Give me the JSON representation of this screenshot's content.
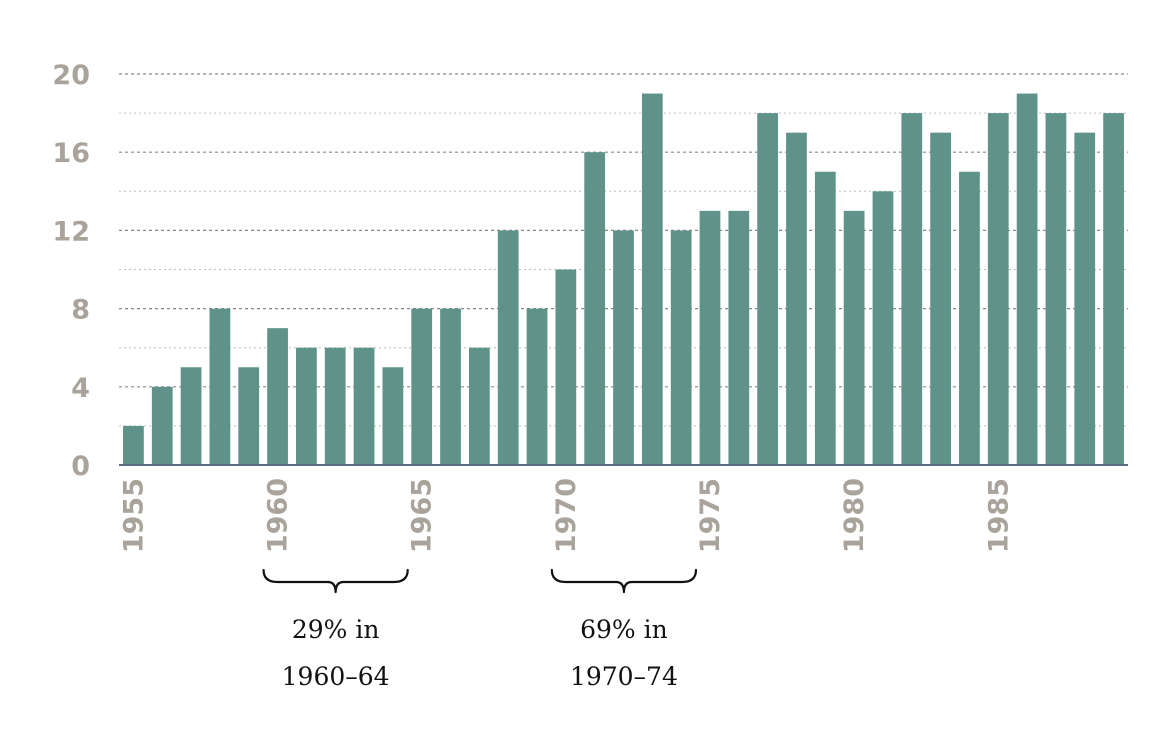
{
  "chart_data": {
    "type": "bar",
    "categories": [
      "1955",
      "1956",
      "1957",
      "1958",
      "1959",
      "1960",
      "1961",
      "1962",
      "1963",
      "1964",
      "1965",
      "1966",
      "1967",
      "1968",
      "1969",
      "1970",
      "1971",
      "1972",
      "1973",
      "1974",
      "1975",
      "1976",
      "1977",
      "1978",
      "1979",
      "1980",
      "1981",
      "1982",
      "1983",
      "1984",
      "1985",
      "1986",
      "1987",
      "1988",
      "1989"
    ],
    "values": [
      2,
      4,
      5,
      8,
      5,
      7,
      6,
      6,
      6,
      5,
      8,
      8,
      6,
      12,
      8,
      10,
      16,
      12,
      19,
      12,
      13,
      13,
      18,
      17,
      15,
      13,
      14,
      18,
      17,
      15,
      18,
      19,
      18,
      17,
      18
    ],
    "xlabel": "",
    "ylabel": "",
    "ylim": [
      0,
      20
    ],
    "yticks": [
      "0",
      "4",
      "8",
      "12",
      "16",
      "20"
    ],
    "xticks": [
      "1955",
      "1960",
      "1965",
      "1970",
      "1975",
      "1980",
      "1985"
    ],
    "grid": true,
    "bar_color": "#5f938a",
    "annotations": [
      {
        "from": "1960",
        "to": "1965",
        "line1": "29% in",
        "line2": "1960–64"
      },
      {
        "from": "1970",
        "to": "1975",
        "line1": "69% in",
        "line2": "1970–74"
      }
    ]
  }
}
